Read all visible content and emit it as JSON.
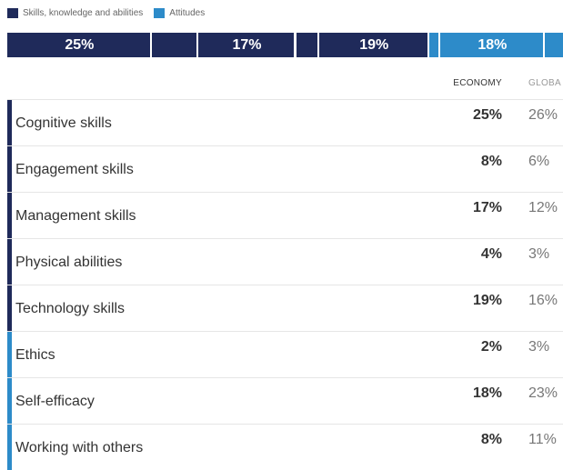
{
  "legend": [
    {
      "label": "Skills, knowledge and abilities",
      "color": "#1f2a5a"
    },
    {
      "label": "Attitudes",
      "color": "#2d8bc9"
    }
  ],
  "stack_bar": [
    {
      "value": 25,
      "label": "25%",
      "color": "#1f2a5a"
    },
    {
      "value": 8,
      "label": "",
      "color": "#1f2a5a"
    },
    {
      "value": 17,
      "label": "17%",
      "color": "#1f2a5a"
    },
    {
      "value": 4,
      "label": "",
      "color": "#1f2a5a"
    },
    {
      "value": 19,
      "label": "19%",
      "color": "#1f2a5a"
    },
    {
      "value": 2,
      "label": "",
      "color": "#2d8bc9"
    },
    {
      "value": 18,
      "label": "18%",
      "color": "#2d8bc9"
    },
    {
      "value": 8,
      "label": "",
      "color": "#2d8bc9"
    }
  ],
  "columns": {
    "economy": "ECONOMY",
    "global": "GLOBA"
  },
  "chart_data": {
    "type": "table",
    "columns": [
      "ECONOMY",
      "GLOBA"
    ],
    "rows": [
      {
        "label": "Cognitive skills",
        "economy": "25%",
        "global": "26%",
        "group": "skills"
      },
      {
        "label": "Engagement skills",
        "economy": "8%",
        "global": "6%",
        "group": "skills"
      },
      {
        "label": "Management skills",
        "economy": "17%",
        "global": "12%",
        "group": "skills"
      },
      {
        "label": "Physical abilities",
        "economy": "4%",
        "global": "3%",
        "group": "skills"
      },
      {
        "label": "Technology skills",
        "economy": "19%",
        "global": "16%",
        "group": "skills"
      },
      {
        "label": "Ethics",
        "economy": "2%",
        "global": "3%",
        "group": "attitudes"
      },
      {
        "label": "Self-efficacy",
        "economy": "18%",
        "global": "23%",
        "group": "attitudes"
      },
      {
        "label": "Working with others",
        "economy": "8%",
        "global": "11%",
        "group": "attitudes"
      }
    ],
    "group_colors": {
      "skills": "#1f2a5a",
      "attitudes": "#2d8bc9"
    }
  }
}
